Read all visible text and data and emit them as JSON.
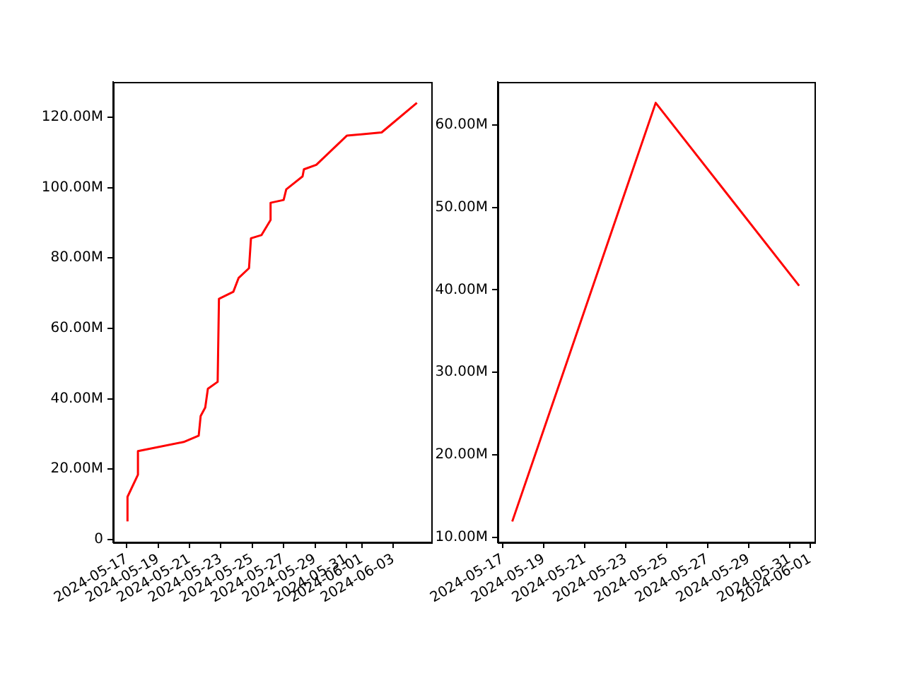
{
  "chart_data": [
    {
      "type": "line",
      "x": [
        "2024-05-17T01:00",
        "2024-05-17T01:00",
        "2024-05-17T17:00",
        "2024-05-17T17:00",
        "2024-05-20T15:00",
        "2024-05-21T14:00",
        "2024-05-21T17:00",
        "2024-05-22T00:00",
        "2024-05-22T04:00",
        "2024-05-22T19:00",
        "2024-05-22T21:00",
        "2024-05-23T19:00",
        "2024-05-24T03:00",
        "2024-05-24T19:00",
        "2024-05-24T22:00",
        "2024-05-25T14:00",
        "2024-05-26T04:00",
        "2024-05-26T04:00",
        "2024-05-27T00:00",
        "2024-05-27T04:00",
        "2024-05-28T05:00",
        "2024-05-28T07:00",
        "2024-05-29T02:00",
        "2024-05-31T01:00",
        "2024-06-02T06:00",
        "2024-06-04T12:00"
      ],
      "series": [
        {
          "color": "#ff0000",
          "values": [
            5.1,
            12.1,
            18.4,
            25.1,
            27.7,
            29.5,
            35.1,
            37.5,
            42.8,
            44.8,
            68.4,
            70.4,
            74.3,
            77.1,
            85.6,
            86.5,
            90.8,
            95.7,
            96.5,
            99.5,
            103.2,
            105.2,
            106.5,
            114.8,
            115.7,
            124.1
          ]
        }
      ],
      "xlim": [
        "2024-05-16T03:00",
        "2024-06-05T10:00"
      ],
      "xticks": [
        "2024-05-17",
        "2024-05-19",
        "2024-05-21",
        "2024-05-23",
        "2024-05-25",
        "2024-05-27",
        "2024-05-29",
        "2024-05-31",
        "2024-06-01",
        "2024-06-03"
      ],
      "ylim": [
        -0.85,
        130.05
      ],
      "yticks": [
        0,
        {
          "value": 20,
          "label": "20.00M"
        },
        {
          "value": 40,
          "label": "40.00M"
        },
        {
          "value": 60,
          "label": "60.00M"
        },
        {
          "value": 80,
          "label": "80.00M"
        },
        {
          "value": 100,
          "label": "100.00M"
        },
        {
          "value": 120,
          "label": "120.00M"
        }
      ]
    },
    {
      "type": "line",
      "x": [
        "2024-05-17T11:00",
        "2024-05-24T11:00",
        "2024-05-31T11:00"
      ],
      "series": [
        {
          "color": "#ff0000",
          "values": [
            11.9,
            62.7,
            40.5
          ]
        }
      ],
      "xlim": [
        "2024-05-16T18:00",
        "2024-06-01T05:00"
      ],
      "xticks": [
        "2024-05-17",
        "2024-05-19",
        "2024-05-21",
        "2024-05-23",
        "2024-05-25",
        "2024-05-27",
        "2024-05-29",
        "2024-05-31",
        "2024-06-01"
      ],
      "ylim": [
        9.36,
        65.24
      ],
      "yticks": [
        {
          "value": 10,
          "label": "10.00M"
        },
        {
          "value": 20,
          "label": "20.00M"
        },
        {
          "value": 30,
          "label": "30.00M"
        },
        {
          "value": 40,
          "label": "40.00M"
        },
        {
          "value": 50,
          "label": "50.00M"
        },
        {
          "value": 60,
          "label": "60.00M"
        }
      ]
    }
  ]
}
